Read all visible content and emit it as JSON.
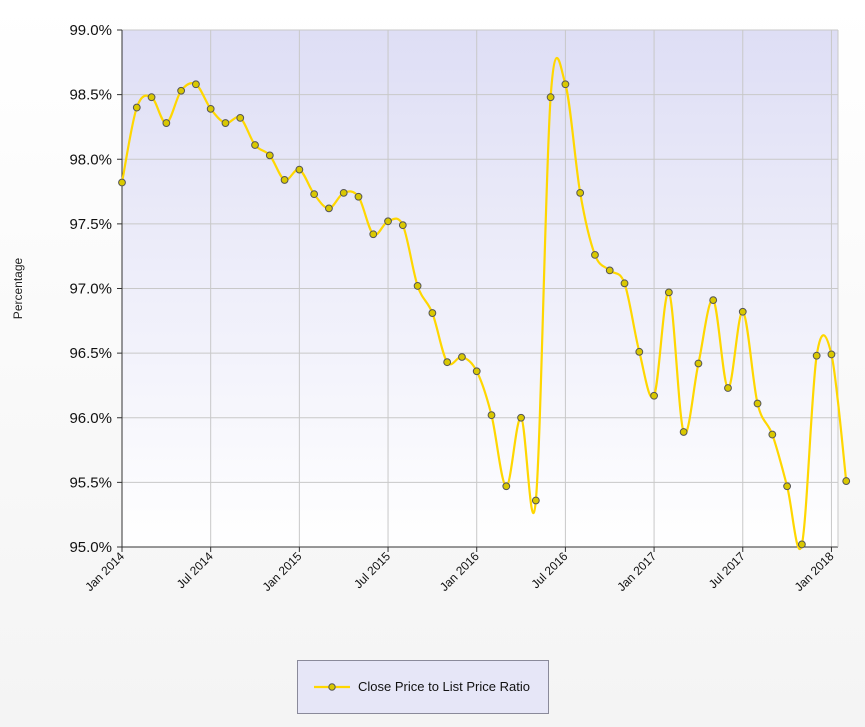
{
  "chart_data": {
    "type": "line",
    "title": "",
    "xlabel": "",
    "ylabel": "Percentage",
    "ylim": [
      95.0,
      99.0
    ],
    "yticks": [
      "95.0%",
      "95.5%",
      "96.0%",
      "96.5%",
      "97.0%",
      "97.5%",
      "98.0%",
      "98.5%",
      "99.0%"
    ],
    "xticks": [
      "Jan 2014",
      "Jul 2014",
      "Jan 2015",
      "Jul 2015",
      "Jan 2016",
      "Jul 2016",
      "Jan 2017",
      "Jul 2017",
      "Jan 2018"
    ],
    "grid": true,
    "legend_position": "bottom",
    "series": [
      {
        "name": "Close Price to List Price Ratio",
        "color": "#ffd700",
        "marker_color": "#d9c800",
        "values": [
          97.82,
          98.4,
          98.48,
          98.28,
          98.53,
          98.58,
          98.39,
          98.28,
          98.32,
          98.11,
          98.03,
          97.84,
          97.92,
          97.73,
          97.62,
          97.74,
          97.71,
          97.42,
          97.52,
          97.49,
          97.02,
          96.81,
          96.43,
          96.47,
          96.36,
          96.02,
          95.47,
          96.0,
          95.36,
          98.48,
          98.58,
          97.74,
          97.26,
          97.14,
          97.04,
          96.51,
          96.17,
          96.97,
          95.89,
          96.42,
          96.91,
          96.23,
          96.82,
          96.11,
          95.87,
          95.47,
          95.02,
          96.48,
          96.49,
          95.51
        ]
      }
    ]
  },
  "legend": {
    "label": "Close Price to List Price Ratio"
  }
}
